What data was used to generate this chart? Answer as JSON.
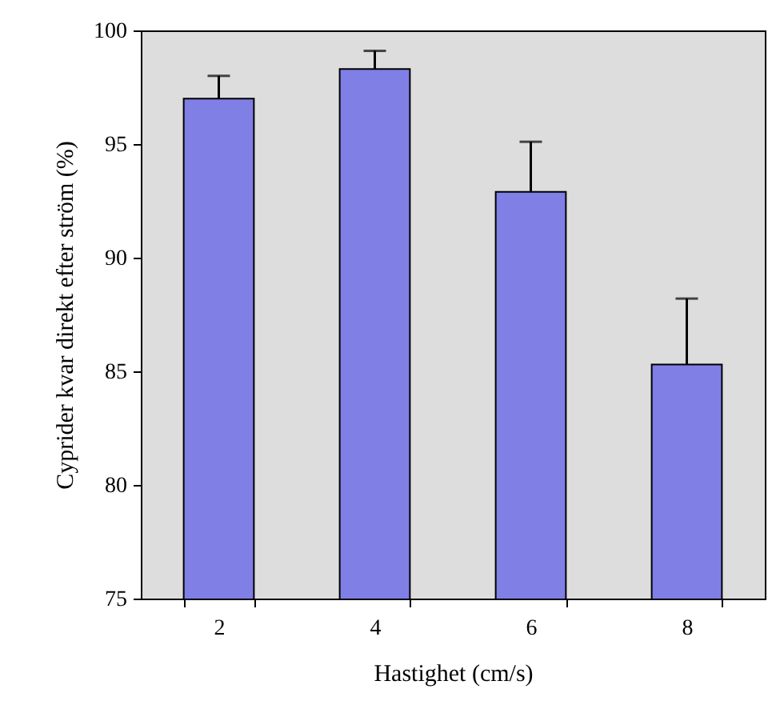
{
  "chart_data": {
    "type": "bar",
    "xlabel": "Hastighet (cm/s)",
    "ylabel": "Cyprider kvar direkt efter ström (%)",
    "categories": [
      "2",
      "4",
      "6",
      "8"
    ],
    "values": [
      97.0,
      98.3,
      92.9,
      85.3
    ],
    "errors": [
      [
        97.0,
        98.0
      ],
      [
        98.3,
        99.1
      ],
      [
        92.9,
        95.1
      ],
      [
        85.3,
        88.2
      ]
    ],
    "color": "#7f7fe6",
    "ylim": [
      75,
      100
    ],
    "yticks": [
      75,
      80,
      85,
      90,
      95,
      100
    ],
    "grid": false
  }
}
